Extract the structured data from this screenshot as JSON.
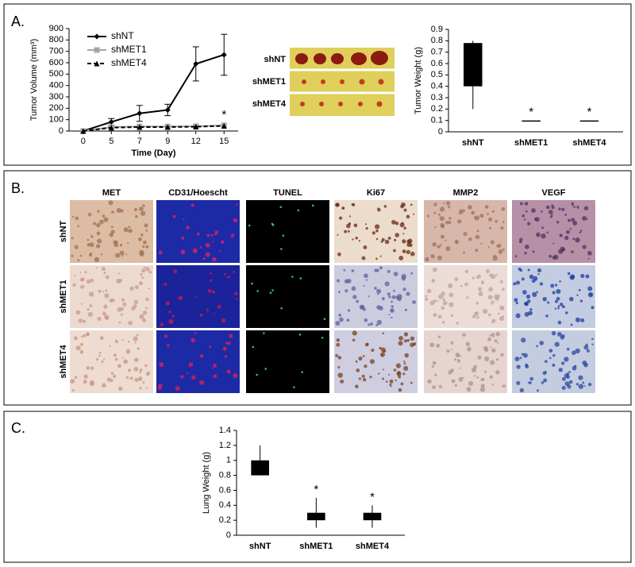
{
  "panel_labels": [
    "A.",
    "B.",
    "C."
  ],
  "tumor_photo": {
    "rows": [
      "shNT",
      "shMET1",
      "shMET4"
    ]
  },
  "histology": {
    "columns": [
      "MET",
      "CD31/Hoescht",
      "TUNEL",
      "Ki67",
      "MMP2",
      "VEGF"
    ],
    "rows": [
      "shNT",
      "shMET1",
      "shMET4"
    ]
  },
  "chart_data": [
    {
      "type": "line",
      "xlabel": "Time (Day)",
      "ylabel": "Tumor Volume (mm³)",
      "categories": [
        "0",
        "5",
        "7",
        "9",
        "12",
        "15"
      ],
      "ylim": [
        0,
        900
      ],
      "yticks": [
        0,
        100,
        200,
        300,
        400,
        500,
        600,
        700,
        800,
        900
      ],
      "series": [
        {
          "name": "shNT",
          "color": "#000000",
          "marker": "diamond",
          "values": [
            0,
            80,
            155,
            185,
            590,
            670
          ],
          "errors": [
            0,
            30,
            70,
            50,
            150,
            180
          ]
        },
        {
          "name": "shMET1",
          "color": "#a6a6a6",
          "marker": "square",
          "values": [
            0,
            35,
            40,
            40,
            42,
            50
          ]
        },
        {
          "name": "shMET4",
          "color": "#000000",
          "marker": "triangle",
          "dash": true,
          "values": [
            0,
            30,
            35,
            35,
            38,
            45
          ]
        }
      ],
      "annotations": [
        {
          "text": "*",
          "category": "15"
        }
      ]
    },
    {
      "type": "box",
      "ylabel": "Tumor Weight (g)",
      "categories": [
        "shNT",
        "shMET1",
        "shMET4"
      ],
      "ylim": [
        0,
        0.9
      ],
      "yticks": [
        0,
        0.1,
        0.2,
        0.3,
        0.4,
        0.5,
        0.6,
        0.7,
        0.8,
        0.9
      ],
      "low": [
        0.2,
        0.1,
        0.1
      ],
      "box_low": [
        0.4,
        0.1,
        0.1
      ],
      "box_high": [
        0.78,
        0.1,
        0.1
      ],
      "high": [
        0.8,
        0.1,
        0.1
      ],
      "color": "#000000",
      "annotations": [
        {
          "text": "*",
          "category": "shMET1"
        },
        {
          "text": "*",
          "category": "shMET4"
        }
      ]
    },
    {
      "type": "box",
      "ylabel": "Lung Weight (g)",
      "categories": [
        "shNT",
        "shMET1",
        "shMET4"
      ],
      "ylim": [
        0,
        1.4
      ],
      "yticks": [
        0,
        0.2,
        0.4,
        0.6,
        0.8,
        1,
        1.2,
        1.4
      ],
      "low": [
        0.8,
        0.1,
        0.1
      ],
      "box_low": [
        0.8,
        0.2,
        0.2
      ],
      "box_high": [
        1.0,
        0.3,
        0.3
      ],
      "high": [
        1.2,
        0.5,
        0.4
      ],
      "color": "#000000",
      "annotations": [
        {
          "text": "*",
          "category": "shMET1"
        },
        {
          "text": "*",
          "category": "shMET4"
        }
      ]
    }
  ]
}
